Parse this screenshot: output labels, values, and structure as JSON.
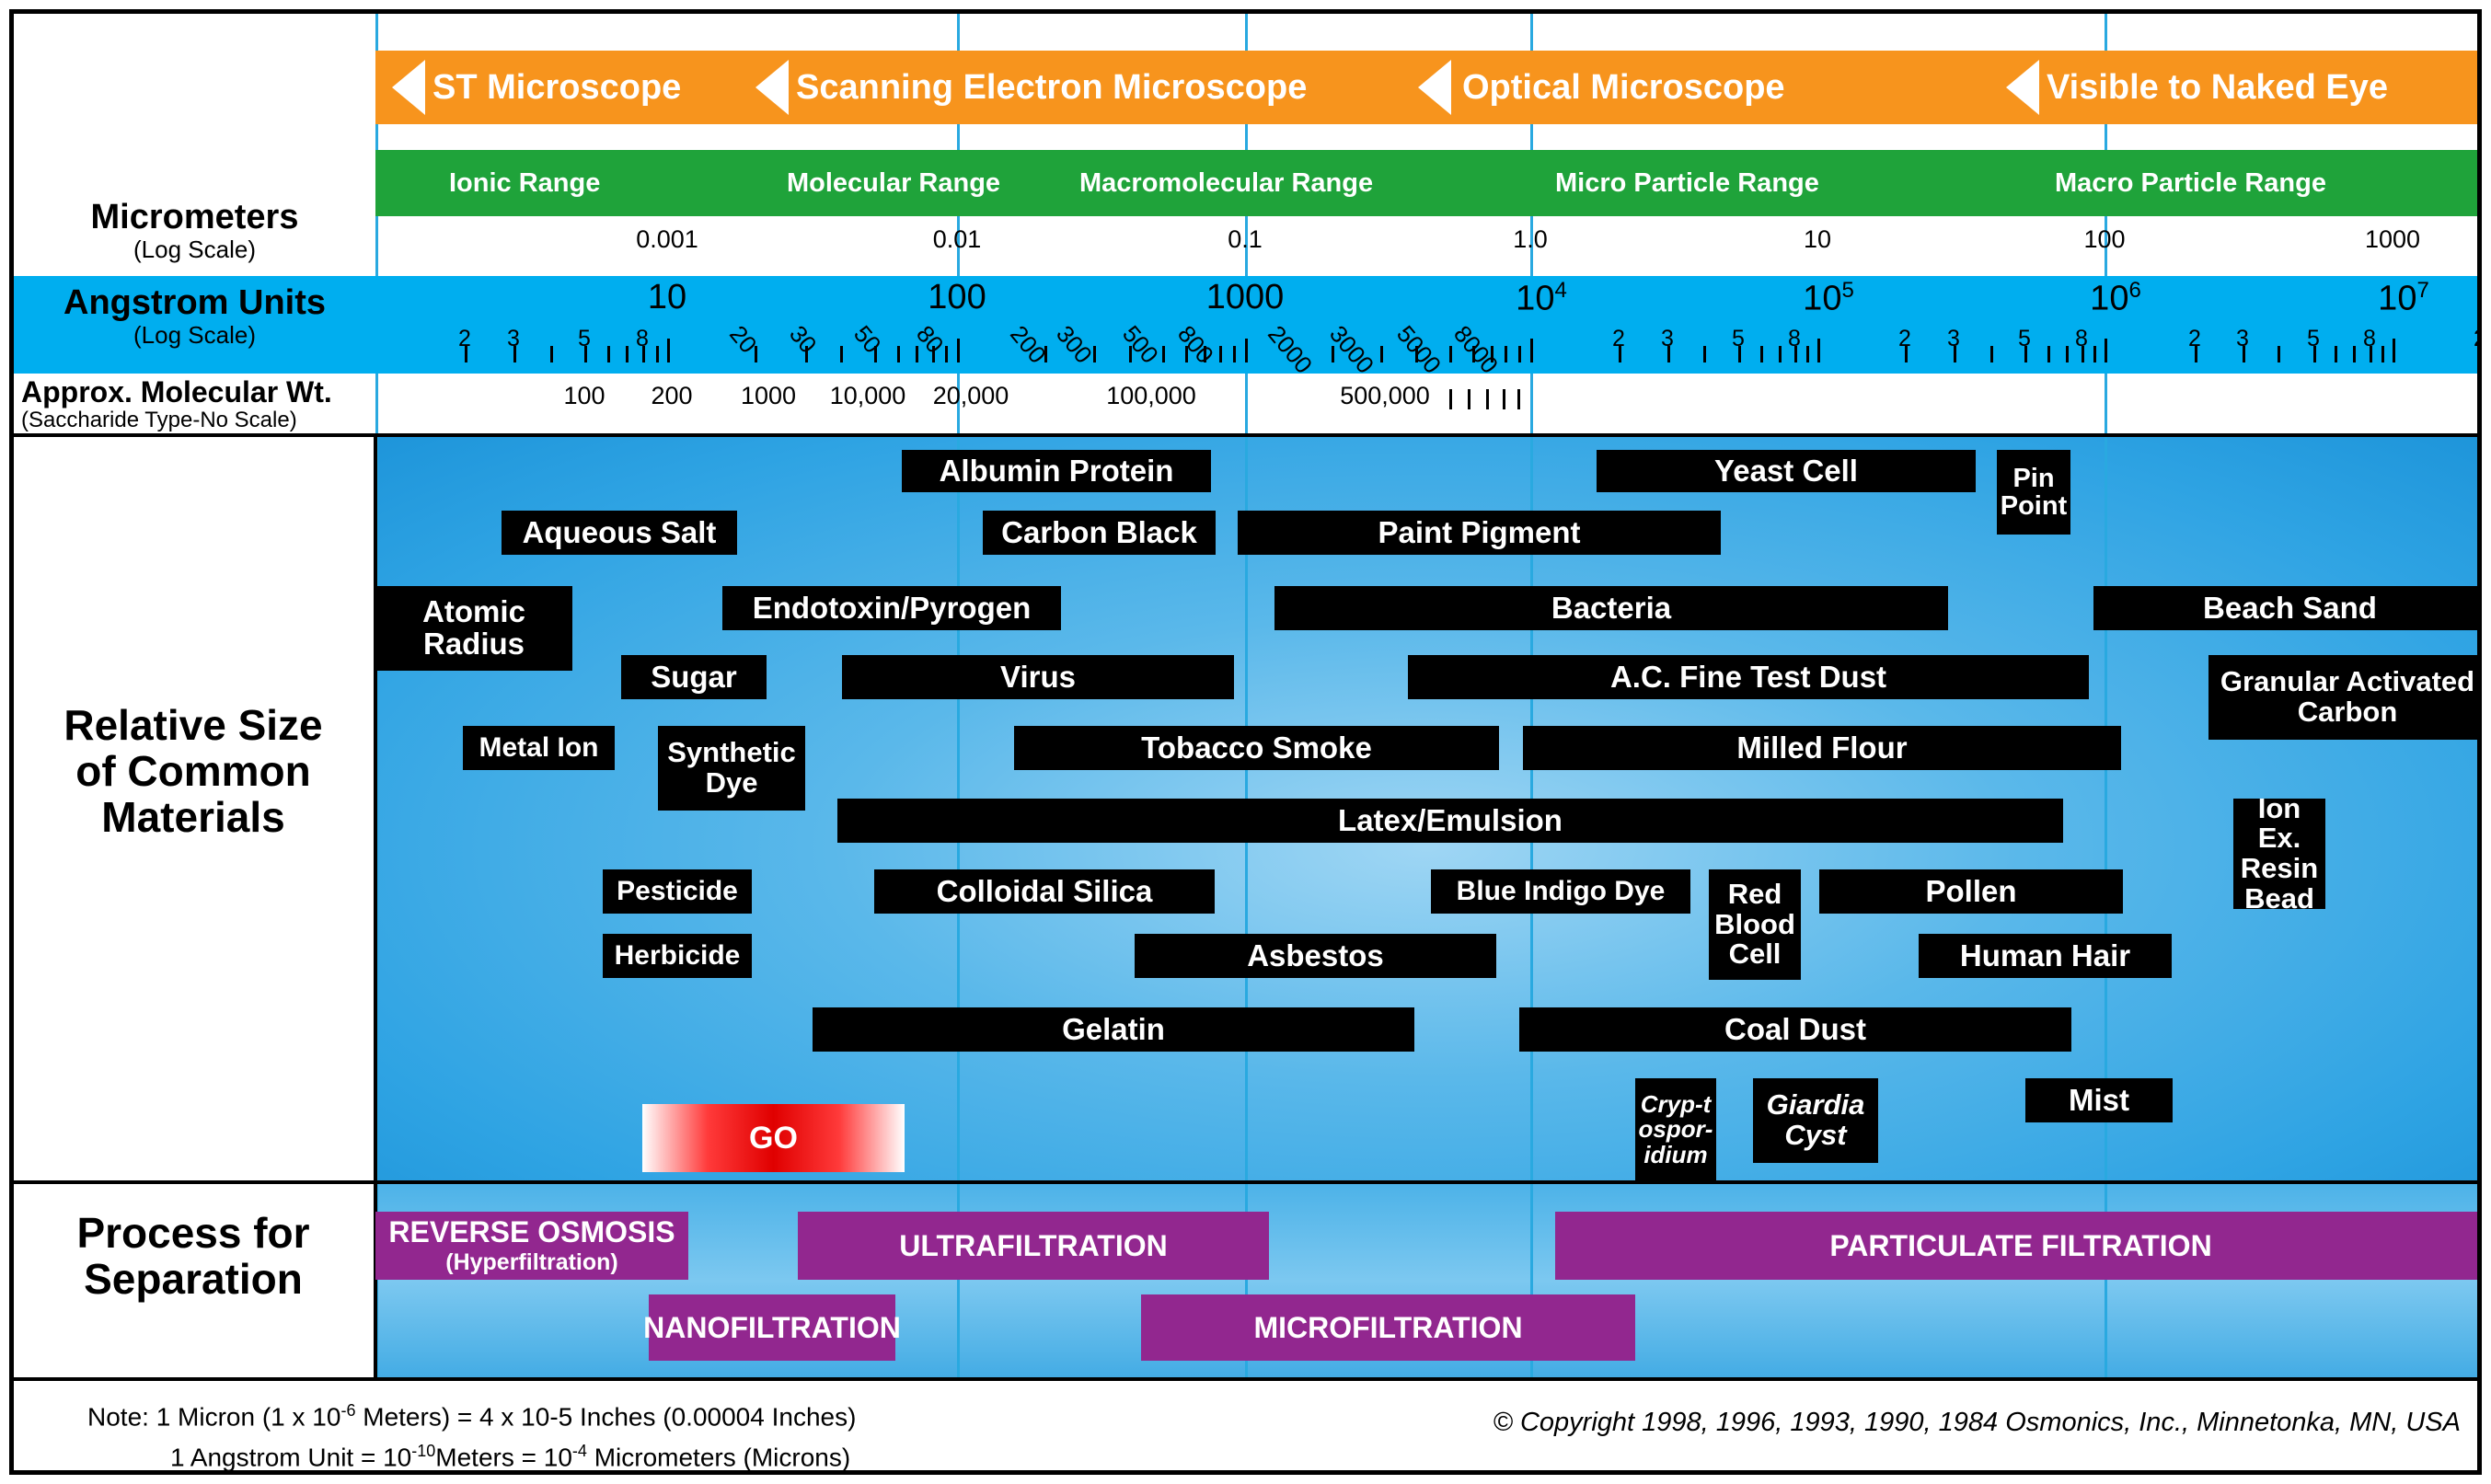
{
  "scopes": [
    {
      "label": "ST Microscope"
    },
    {
      "label": "Scanning Electron Microscope"
    },
    {
      "label": "Optical Microscope"
    },
    {
      "label": "Visible to Naked Eye"
    }
  ],
  "ranges": [
    {
      "label": "Ionic Range"
    },
    {
      "label": "Molecular Range"
    },
    {
      "label": "Macromolecular Range"
    },
    {
      "label": "Micro Particle Range"
    },
    {
      "label": "Macro Particle Range"
    }
  ],
  "row_labels": {
    "micrometers": "Micrometers",
    "micrometers_sub": "(Log Scale)",
    "angstrom": "Angstrom Units",
    "angstrom_sub": "(Log Scale)",
    "molwt": "Approx. Molecular Wt.",
    "molwt_sub": "(Saccharide Type-No Scale)",
    "materials": "Relative Size of Common Materials",
    "process": "Process for Separation"
  },
  "micrometer_ticks": [
    "0.001",
    "0.01",
    "0.1",
    "1.0",
    "10",
    "100",
    "1000"
  ],
  "angstrom_major": [
    {
      "base": "10",
      "exp": ""
    },
    {
      "base": "100",
      "exp": ""
    },
    {
      "base": "1000",
      "exp": ""
    },
    {
      "base": "10",
      "exp": "4"
    },
    {
      "base": "10",
      "exp": "5"
    },
    {
      "base": "10",
      "exp": "6"
    },
    {
      "base": "10",
      "exp": "7"
    }
  ],
  "angstrom_minor": [
    "2",
    "3",
    "5",
    "8",
    "20",
    "30",
    "50",
    "80",
    "200",
    "300",
    "500",
    "800",
    "2000",
    "3000",
    "5000",
    "8000"
  ],
  "molecular_weights": [
    "100",
    "200",
    "1000",
    "10,000",
    "20,000",
    "100,000",
    "500,000"
  ],
  "materials": [
    {
      "label": "Albumin Protein"
    },
    {
      "label": "Yeast Cell"
    },
    {
      "label": "Pin Point"
    },
    {
      "label": "Aqueous Salt"
    },
    {
      "label": "Carbon Black"
    },
    {
      "label": "Paint Pigment"
    },
    {
      "label": "Atomic Radius"
    },
    {
      "label": "Endotoxin/Pyrogen"
    },
    {
      "label": "Bacteria"
    },
    {
      "label": "Beach Sand"
    },
    {
      "label": "Sugar"
    },
    {
      "label": "Virus"
    },
    {
      "label": "A.C. Fine Test Dust"
    },
    {
      "label": "Granular Activated Carbon"
    },
    {
      "label": "Metal Ion"
    },
    {
      "label": "Synthetic Dye"
    },
    {
      "label": "Tobacco Smoke"
    },
    {
      "label": "Milled Flour"
    },
    {
      "label": "Latex/Emulsion"
    },
    {
      "label": "Ion Ex. Resin Bead"
    },
    {
      "label": "Pesticide"
    },
    {
      "label": "Colloidal Silica"
    },
    {
      "label": "Blue Indigo Dye"
    },
    {
      "label": "Red Blood Cell"
    },
    {
      "label": "Pollen"
    },
    {
      "label": "Herbicide"
    },
    {
      "label": "Asbestos"
    },
    {
      "label": "Human Hair"
    },
    {
      "label": "Gelatin"
    },
    {
      "label": "Coal Dust"
    },
    {
      "label": "Cryp-tospor-idium"
    },
    {
      "label": "Giardia Cyst"
    },
    {
      "label": "Mist"
    }
  ],
  "processes": [
    {
      "label": "REVERSE OSMOSIS",
      "sub": "(Hyperfiltration)"
    },
    {
      "label": "ULTRAFILTRATION",
      "sub": ""
    },
    {
      "label": "PARTICULATE FILTRATION",
      "sub": ""
    },
    {
      "label": "NANOFILTRATION",
      "sub": ""
    },
    {
      "label": "MICROFILTRATION",
      "sub": ""
    }
  ],
  "go_button": "GO",
  "notes": {
    "line1_a": "Note:  1 Micron (1 x 10",
    "line1_exp": "-6",
    "line1_b": " Meters) = 4 x 10-5 Inches (0.00004 Inches)",
    "line2_a": "1 Angstrom Unit = 10",
    "line2_exp": "-10",
    "line2_b": "Meters = 10",
    "line2_exp2": "-4",
    "line2_c": " Micrometers (Microns)"
  },
  "copyright": "© Copyright 1998, 1996, 1993, 1990, 1984 Osmonics, Inc., Minnetonka, MN, USA",
  "colors": {
    "orange": "#f7941d",
    "green": "#1fa33a",
    "blue": "#00aeef",
    "purple": "#92278f",
    "label_black": "#000000"
  }
}
